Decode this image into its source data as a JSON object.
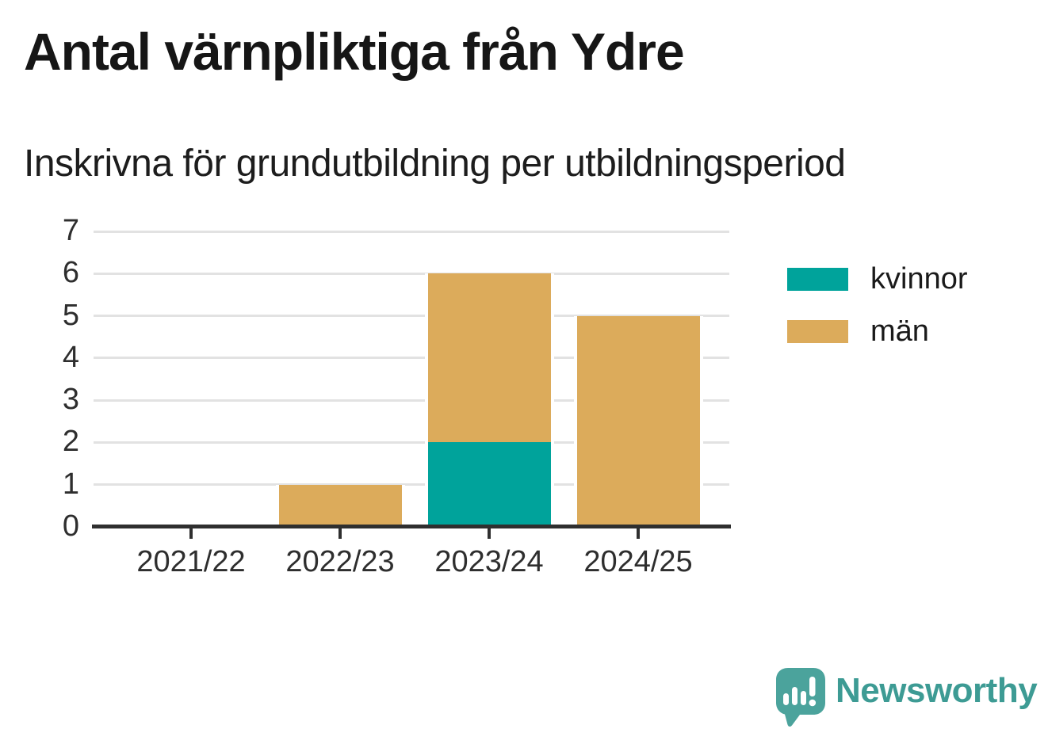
{
  "title": "Antal värnpliktiga från Ydre",
  "subtitle": "Inskrivna för grundutbildning per utbildningsperiod",
  "colors": {
    "kvinnor": "#00a39b",
    "man": "#dcab5b",
    "grid": "#e2e2e2",
    "axis": "#2f2f2f",
    "text": "#2e2e2e",
    "logo_bubble": "#4ba39c",
    "logo_text": "#3d9b94"
  },
  "chart_data": {
    "type": "bar",
    "stacked": true,
    "title": "Antal värnpliktiga från Ydre",
    "subtitle": "Inskrivna för grundutbildning per utbildningsperiod",
    "categories": [
      "2021/22",
      "2022/23",
      "2023/24",
      "2024/25"
    ],
    "series": [
      {
        "name": "kvinnor",
        "color": "#00a39b",
        "values": [
          0,
          0,
          2,
          0
        ]
      },
      {
        "name": "män",
        "color": "#dcab5b",
        "values": [
          0,
          1,
          4,
          5
        ]
      }
    ],
    "totals": [
      0,
      1,
      6,
      5
    ],
    "xlabel": "",
    "ylabel": "",
    "ylim": [
      0,
      7
    ],
    "yticks": [
      0,
      1,
      2,
      3,
      4,
      5,
      6,
      7
    ],
    "grid": true,
    "legend_position": "right"
  },
  "legend": {
    "items": [
      {
        "label": "kvinnor",
        "color": "#00a39b"
      },
      {
        "label": "män",
        "color": "#dcab5b"
      }
    ]
  },
  "branding": {
    "name": "Newsworthy"
  }
}
